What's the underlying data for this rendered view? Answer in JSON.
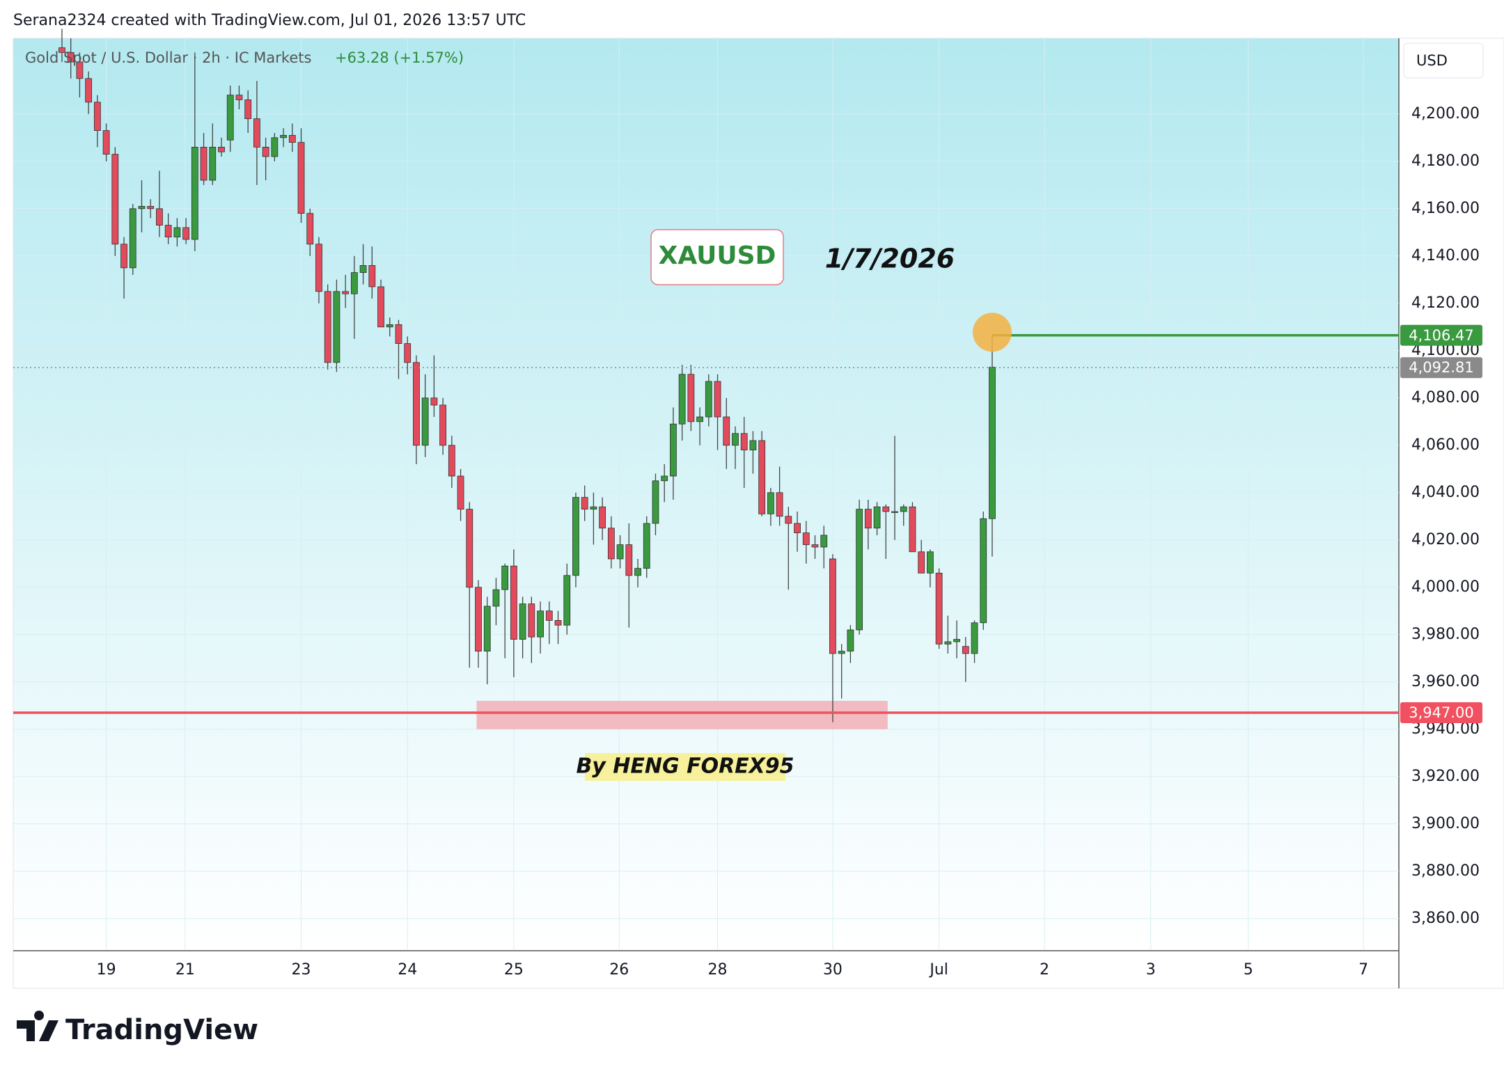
{
  "header": "Serana2324 created with TradingView.com, Jul 01, 2026 13:57 UTC",
  "chart_data": {
    "type": "candlestick",
    "legend": "Gold Spot / U.S. Dollar · 2h · IC Markets",
    "change": "+63.28 (+1.57%)",
    "currency": "USD",
    "annotations": [
      "XAUUSD",
      "1/7/2026",
      "By HENG FOREX95"
    ],
    "up_color": "#3a9a3f",
    "down_color": "#e34b5d",
    "candles": [
      [
        4228,
        4236,
        4222,
        4226
      ],
      [
        4226,
        4232,
        4215,
        4222
      ],
      [
        4222,
        4226,
        4207,
        4215
      ],
      [
        4215,
        4218,
        4200,
        4205
      ],
      [
        4205,
        4208,
        4186,
        4193
      ],
      [
        4193,
        4196,
        4180,
        4183
      ],
      [
        4183,
        4186,
        4140,
        4145
      ],
      [
        4145,
        4148,
        4122,
        4135
      ],
      [
        4135,
        4162,
        4132,
        4160
      ],
      [
        4160,
        4172,
        4150,
        4161
      ],
      [
        4161,
        4164,
        4156,
        4160
      ],
      [
        4160,
        4176,
        4148,
        4153
      ],
      [
        4153,
        4158,
        4145,
        4148
      ],
      [
        4148,
        4156,
        4144,
        4152
      ],
      [
        4152,
        4156,
        4145,
        4147
      ],
      [
        4147,
        4226,
        4142,
        4186
      ],
      [
        4186,
        4192,
        4170,
        4172
      ],
      [
        4172,
        4196,
        4170,
        4186
      ],
      [
        4186,
        4190,
        4182,
        4184
      ],
      [
        4189,
        4212,
        4184,
        4208
      ],
      [
        4208,
        4212,
        4202,
        4206
      ],
      [
        4206,
        4210,
        4192,
        4198
      ],
      [
        4198,
        4214,
        4170,
        4186
      ],
      [
        4186,
        4190,
        4172,
        4182
      ],
      [
        4182,
        4192,
        4180,
        4190
      ],
      [
        4190,
        4194,
        4186,
        4191
      ],
      [
        4191,
        4196,
        4184,
        4188
      ],
      [
        4188,
        4194,
        4154,
        4158
      ],
      [
        4158,
        4160,
        4140,
        4145
      ],
      [
        4145,
        4148,
        4120,
        4125
      ],
      [
        4125,
        4128,
        4092,
        4095
      ],
      [
        4095,
        4130,
        4091,
        4125
      ],
      [
        4125,
        4132,
        4118,
        4124
      ],
      [
        4124,
        4140,
        4105,
        4133
      ],
      [
        4133,
        4145,
        4128,
        4136
      ],
      [
        4136,
        4144,
        4122,
        4127
      ],
      [
        4127,
        4130,
        4110,
        4110
      ],
      [
        4110,
        4114,
        4106,
        4111
      ],
      [
        4111,
        4113,
        4088,
        4103
      ],
      [
        4103,
        4106,
        4090,
        4095
      ],
      [
        4095,
        4098,
        4052,
        4060
      ],
      [
        4060,
        4090,
        4055,
        4080
      ],
      [
        4080,
        4098,
        4072,
        4077
      ],
      [
        4077,
        4080,
        4056,
        4060
      ],
      [
        4060,
        4064,
        4042,
        4047
      ],
      [
        4047,
        4050,
        4028,
        4033
      ],
      [
        4033,
        4036,
        3966,
        4000
      ],
      [
        4000,
        4003,
        3966,
        3973
      ],
      [
        3973,
        3996,
        3959,
        3992
      ],
      [
        3992,
        4004,
        3984,
        3999
      ],
      [
        3999,
        4010,
        3970,
        4009
      ],
      [
        4009,
        4016,
        3962,
        3978
      ],
      [
        3978,
        3996,
        3970,
        3993
      ],
      [
        3993,
        3996,
        3968,
        3979
      ],
      [
        3979,
        3994,
        3972,
        3990
      ],
      [
        3990,
        3994,
        3976,
        3986
      ],
      [
        3986,
        3990,
        3976,
        3984
      ],
      [
        3984,
        4010,
        3980,
        4005
      ],
      [
        4005,
        4040,
        4000,
        4038
      ],
      [
        4038,
        4043,
        4028,
        4033
      ],
      [
        4033,
        4040,
        4018,
        4034
      ],
      [
        4034,
        4038,
        4020,
        4025
      ],
      [
        4025,
        4030,
        4008,
        4012
      ],
      [
        4012,
        4022,
        4008,
        4018
      ],
      [
        4018,
        4027,
        3983,
        4005
      ],
      [
        4005,
        4012,
        4000,
        4008
      ],
      [
        4008,
        4030,
        4004,
        4027
      ],
      [
        4027,
        4048,
        4022,
        4045
      ],
      [
        4045,
        4052,
        4036,
        4047
      ],
      [
        4047,
        4076,
        4037,
        4069
      ],
      [
        4069,
        4094,
        4062,
        4090
      ],
      [
        4090,
        4094,
        4066,
        4070
      ],
      [
        4070,
        4076,
        4060,
        4072
      ],
      [
        4072,
        4090,
        4068,
        4087
      ],
      [
        4087,
        4090,
        4058,
        4072
      ],
      [
        4072,
        4080,
        4050,
        4060
      ],
      [
        4060,
        4068,
        4050,
        4065
      ],
      [
        4065,
        4072,
        4042,
        4058
      ],
      [
        4058,
        4066,
        4048,
        4062
      ],
      [
        4062,
        4066,
        4030,
        4031
      ],
      [
        4031,
        4042,
        4026,
        4040
      ],
      [
        4040,
        4051,
        4026,
        4030
      ],
      [
        4030,
        4034,
        3999,
        4027
      ],
      [
        4027,
        4032,
        4015,
        4023
      ],
      [
        4023,
        4028,
        4010,
        4018
      ],
      [
        4018,
        4022,
        4012,
        4017
      ],
      [
        4017,
        4026,
        4008,
        4022
      ],
      [
        4012,
        4014,
        3943,
        3972
      ],
      [
        3972,
        3976,
        3953,
        3973
      ],
      [
        3973,
        3984,
        3968,
        3982
      ],
      [
        3982,
        4037,
        3980,
        4033
      ],
      [
        4033,
        4037,
        4016,
        4025
      ],
      [
        4025,
        4036,
        4022,
        4034
      ],
      [
        4034,
        4035,
        4012,
        4032
      ],
      [
        4032,
        4064,
        4020,
        4032
      ],
      [
        4032,
        4035,
        4026,
        4034
      ],
      [
        4034,
        4036,
        4018,
        4015
      ],
      [
        4015,
        4020,
        4006,
        4006
      ],
      [
        4006,
        4016,
        4000,
        4015
      ],
      [
        4006,
        4008,
        3974,
        3976
      ],
      [
        3976,
        3988,
        3972,
        3977
      ],
      [
        3977,
        3986,
        3970,
        3978
      ],
      [
        3975,
        3979,
        3960,
        3972
      ],
      [
        3972,
        3986,
        3968,
        3985
      ],
      [
        3985,
        4032,
        3982,
        4029
      ],
      [
        4029,
        4106,
        4013,
        4093
      ]
    ],
    "ylim": [
      3847,
      4232
    ],
    "yticks": [
      {
        "value": 3860,
        "label": "3,860.00"
      },
      {
        "value": 3880,
        "label": "3,880.00"
      },
      {
        "value": 3900,
        "label": "3,900.00"
      },
      {
        "value": 3920,
        "label": "3,920.00"
      },
      {
        "value": 3940,
        "label": "3,940.00"
      },
      {
        "value": 3960,
        "label": "3,960.00"
      },
      {
        "value": 3980,
        "label": "3,980.00"
      },
      {
        "value": 4000,
        "label": "4,000.00"
      },
      {
        "value": 4020,
        "label": "4,020.00"
      },
      {
        "value": 4040,
        "label": "4,040.00"
      },
      {
        "value": 4060,
        "label": "4,060.00"
      },
      {
        "value": 4080,
        "label": "4,080.00"
      },
      {
        "value": 4100,
        "label": "4,100.00"
      },
      {
        "value": 4120,
        "label": "4,120.00"
      },
      {
        "value": 4140,
        "label": "4,140.00"
      },
      {
        "value": 4160,
        "label": "4,160.00"
      },
      {
        "value": 4180,
        "label": "4,180.00"
      },
      {
        "value": 4200,
        "label": "4,200.00"
      }
    ],
    "xlim": [
      -5.5,
      150.9
    ],
    "xticks": [
      {
        "value": 5,
        "label": "19"
      },
      {
        "value": 13.9,
        "label": "21"
      },
      {
        "value": 27,
        "label": "23"
      },
      {
        "value": 39,
        "label": "24"
      },
      {
        "value": 51,
        "label": "25"
      },
      {
        "value": 62.9,
        "label": "26"
      },
      {
        "value": 74,
        "label": "28"
      },
      {
        "value": 87,
        "label": "30"
      },
      {
        "value": 99,
        "label": "Jul"
      },
      {
        "value": 110.9,
        "label": "2"
      },
      {
        "value": 122.9,
        "label": "3"
      },
      {
        "value": 133.9,
        "label": "5"
      },
      {
        "value": 146.9,
        "label": "7"
      }
    ],
    "grid": true,
    "levels": [
      {
        "value": 4106.47,
        "label": "4,106.47",
        "color": "#3a9a3f"
      },
      {
        "value": 4092.81,
        "label": "4,092.81",
        "color": "#8a8a8a"
      },
      {
        "value": 3947,
        "label": "3,947.00",
        "color": "#f0505f"
      }
    ],
    "zone": {
      "x": [
        46.8,
        93.2
      ],
      "y": [
        3940,
        3952
      ]
    }
  },
  "footer": "TradingView"
}
